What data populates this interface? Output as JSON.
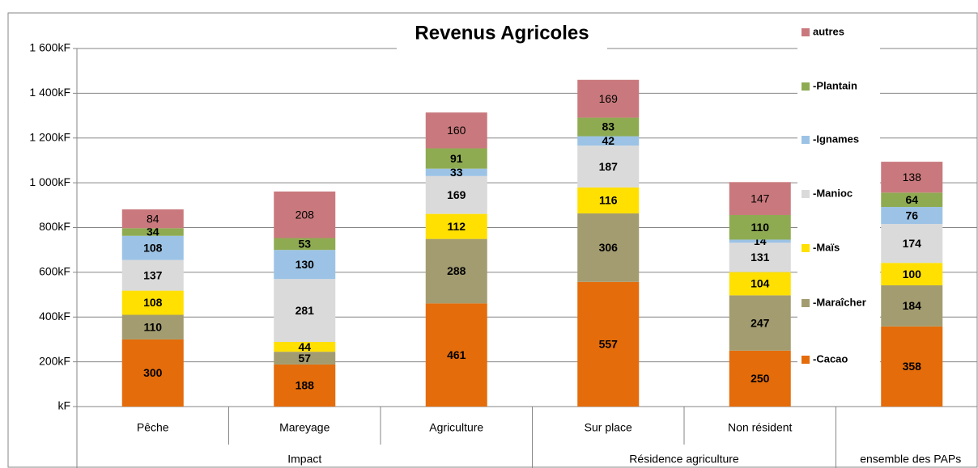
{
  "chart_data": {
    "type": "stacked_bar",
    "title": "Revenus Agricoles",
    "category_groups": [
      {
        "label": "Impact",
        "categories": [
          "Pêche",
          "Mareyage",
          "Agriculture"
        ]
      },
      {
        "label": "Résidence agriculture",
        "categories": [
          "Sur place",
          "Non résident"
        ]
      },
      {
        "label": "ensemble des PAPs",
        "categories": [
          null
        ]
      }
    ],
    "series": [
      {
        "name": "-Cacao",
        "color": "#e46c0a",
        "values": [
          300,
          188,
          461,
          557,
          250,
          358
        ]
      },
      {
        "name": "-Maraîcher",
        "color": "#a39c70",
        "values": [
          110,
          57,
          288,
          306,
          247,
          184
        ]
      },
      {
        "name": "-Maïs",
        "color": "#ffe000",
        "values": [
          108,
          44,
          112,
          116,
          104,
          100
        ]
      },
      {
        "name": "-Manioc",
        "color": "#dadada",
        "values": [
          137,
          281,
          169,
          187,
          131,
          174
        ]
      },
      {
        "name": "-Ignames",
        "color": "#9cc3e5",
        "values": [
          108,
          130,
          33,
          42,
          14,
          76
        ]
      },
      {
        "name": "-Plantain",
        "color": "#8eab52",
        "values": [
          34,
          53,
          91,
          83,
          110,
          64
        ]
      },
      {
        "name": "autres",
        "color": "#c9797d",
        "values": [
          84,
          208,
          160,
          169,
          147,
          138
        ]
      }
    ],
    "ylim": [
      0,
      1600
    ],
    "yticks": [
      {
        "value": 0,
        "label": "kF"
      },
      {
        "value": 200,
        "label": "200kF"
      },
      {
        "value": 400,
        "label": "400kF"
      },
      {
        "value": 600,
        "label": "600kF"
      },
      {
        "value": 800,
        "label": "800kF"
      },
      {
        "value": 1000,
        "label": "1 000kF"
      },
      {
        "value": 1200,
        "label": "1 200kF"
      },
      {
        "value": 1400,
        "label": "1 400kF"
      },
      {
        "value": 1600,
        "label": "1 600kF"
      }
    ],
    "grid": true,
    "legend": "right"
  }
}
